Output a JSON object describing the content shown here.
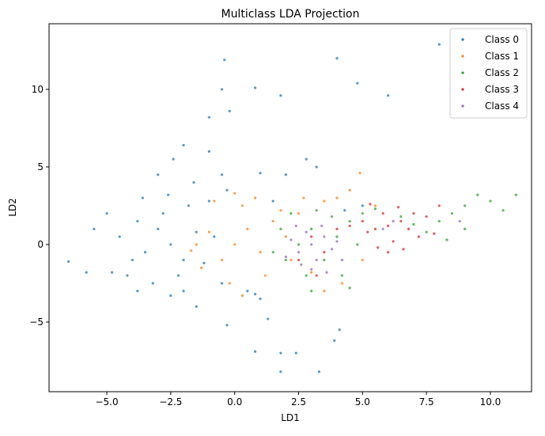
{
  "chart_data": {
    "type": "scatter",
    "title": "Multiclass LDA Projection",
    "x_label": "LD1",
    "y_label": "LD2",
    "xlim": [
      -7.26,
      11.61
    ],
    "ylim": [
      -9.49,
      14.23
    ],
    "xticks": [
      {
        "value": -5,
        "label": "−5.0"
      },
      {
        "value": -2.5,
        "label": "−2.5"
      },
      {
        "value": 0,
        "label": "0.0"
      },
      {
        "value": 2.5,
        "label": "2.5"
      },
      {
        "value": 5,
        "label": "5.0"
      },
      {
        "value": 7.5,
        "label": "7.5"
      },
      {
        "value": 10,
        "label": "10.0"
      }
    ],
    "yticks": [
      {
        "value": -5,
        "label": "−5"
      },
      0,
      5,
      10
    ],
    "grid": false,
    "legend": "upper right",
    "series": [
      {
        "name": "Class 0",
        "color": "#1f77b4",
        "x": [
          -2.5,
          -3,
          -2,
          -3.5,
          -1.5,
          -2.8,
          -2.2,
          -3.8,
          -1.2,
          -4,
          -3.2,
          -1.8,
          -2.6,
          -0.8,
          -4.5,
          -3.6,
          -2,
          -1,
          -4.2,
          -0.5,
          -3,
          -2.4,
          -1.6,
          -5,
          -5.5,
          -4.8,
          -0.3,
          0.5,
          1,
          1.5,
          0.8,
          -2.5,
          -3.8,
          -5.8,
          -6.5,
          -1,
          -2,
          -0.5,
          1,
          2,
          2.8,
          3.2,
          -0.4,
          -0.5,
          0.8,
          1.8,
          4,
          4.8,
          6,
          8,
          -1,
          -0.2,
          1.8,
          1.8,
          3.3,
          2.4,
          0.8,
          -0.3,
          3.9,
          4.1,
          1.3,
          -1.5,
          4.3,
          5
        ],
        "values": [
          0,
          1,
          -1,
          -0.5,
          0.8,
          2,
          -2,
          1.5,
          -1.2,
          -1,
          -2.5,
          2.5,
          3.2,
          0.5,
          0.5,
          3,
          -3,
          2.8,
          -2,
          -2.5,
          4.5,
          5.5,
          4,
          2,
          1,
          -1.8,
          3.5,
          -3,
          -3.5,
          2.8,
          -3.2,
          -3.3,
          -3,
          -1.8,
          -1.1,
          6,
          6.4,
          4.5,
          4.6,
          4.5,
          5.5,
          5,
          11.9,
          10,
          10.1,
          9.6,
          12,
          10.4,
          9.6,
          12.9,
          8.2,
          8.6,
          -7,
          -8.2,
          -8.2,
          -7,
          -6.9,
          -5.2,
          -6.2,
          -5.5,
          -4.8,
          -4,
          2.2,
          2.5
        ]
      },
      {
        "name": "Class 1",
        "color": "#ff7f0e",
        "x": [
          0,
          0.5,
          -0.5,
          1,
          -1,
          0.3,
          -0.2,
          1.5,
          1.2,
          -1.3,
          0.8,
          -0.8,
          2,
          2.2,
          1.8,
          2.5,
          3,
          3.5,
          4,
          4.5,
          4.9,
          5,
          3.5,
          -1.5,
          0,
          0.3,
          -1.7,
          2.7,
          4.2,
          5.5
        ],
        "values": [
          0,
          1,
          -1,
          -0.5,
          0.8,
          2.5,
          -2.5,
          1.5,
          -2,
          -1.5,
          3,
          2.8,
          0.5,
          -1,
          2.2,
          2,
          -1.8,
          2.8,
          3,
          3.5,
          4.6,
          -1,
          -3,
          0,
          3.3,
          -3.3,
          -0.4,
          3,
          -2.5,
          2.5
        ]
      },
      {
        "name": "Class 2",
        "color": "#2ca02c",
        "x": [
          2.5,
          3,
          3.5,
          4,
          2,
          3.8,
          2.8,
          4.5,
          1.8,
          4.2,
          3.2,
          2.2,
          4.8,
          1.5,
          5,
          5.5,
          3,
          4.5,
          7.5,
          8,
          8.5,
          9,
          9.5,
          10,
          11,
          8.3,
          9,
          10.5,
          6.5,
          7
        ],
        "values": [
          0,
          1,
          -1,
          0.5,
          -1,
          1.8,
          -2,
          1.5,
          1,
          -2,
          2.2,
          2,
          0,
          -0.5,
          2,
          2.3,
          -3,
          -2.8,
          0.8,
          1.5,
          2,
          2.5,
          3.2,
          2.8,
          3.2,
          0.3,
          1,
          2.2,
          1.8,
          1.3
        ]
      },
      {
        "name": "Class 3",
        "color": "#d62728",
        "x": [
          6,
          5.5,
          6.5,
          5.2,
          6.8,
          5.8,
          6.2,
          5,
          7,
          5.6,
          6.4,
          7.2,
          4.5,
          6,
          7.5,
          3,
          3.5,
          2.5,
          4,
          3.2,
          8,
          7.8,
          5.3,
          6.6
        ],
        "values": [
          1.2,
          1,
          1.5,
          0.8,
          1,
          2,
          0.2,
          1.5,
          2,
          -0.2,
          2.4,
          0.5,
          1.2,
          -0.5,
          1.8,
          0.5,
          -0.5,
          -1,
          1,
          -2,
          2.5,
          0.7,
          2.6,
          -0.3
        ]
      },
      {
        "name": "Class 4",
        "color": "#9467bd",
        "x": [
          3,
          2.5,
          3.5,
          2.8,
          3.2,
          2.2,
          3.8,
          2.6,
          3.4,
          4,
          2,
          3,
          4.2,
          2.4,
          3.6,
          5.8,
          6.2,
          8.8
        ],
        "values": [
          0,
          -0.5,
          0.5,
          0.8,
          -1,
          0.3,
          -0.3,
          -1.3,
          1.2,
          0.2,
          -0.8,
          -1.6,
          -1,
          1.2,
          -1.8,
          1,
          1.5,
          1.5
        ]
      }
    ]
  }
}
